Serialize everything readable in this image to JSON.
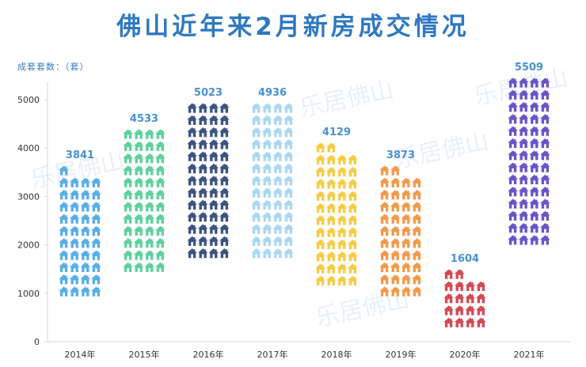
{
  "title": "佛山近年来2月新房成交情况",
  "unit_label": "成套套数：（套）",
  "watermark": "乐居佛山",
  "chart_data": {
    "type": "bar",
    "title": "佛山近年来2月新房成交情况",
    "ylabel": "成套套数：（套）",
    "categories": [
      "2014年",
      "2015年",
      "2016年",
      "2017年",
      "2018年",
      "2019年",
      "2020年",
      "2021年"
    ],
    "values": [
      3841,
      4533,
      5023,
      4936,
      4129,
      3873,
      1604,
      5509
    ],
    "colors": [
      "#5aaee6",
      "#5fd19c",
      "#3d5382",
      "#a9d8f2",
      "#f6cc45",
      "#f29a4b",
      "#d34a55",
      "#6a55c8"
    ],
    "ylim": [
      0,
      5700
    ],
    "yticks": [
      0,
      1000,
      2000,
      3000,
      4000,
      5000
    ],
    "grid": false,
    "legend": "none",
    "mark": "house-icon-pictograph"
  }
}
